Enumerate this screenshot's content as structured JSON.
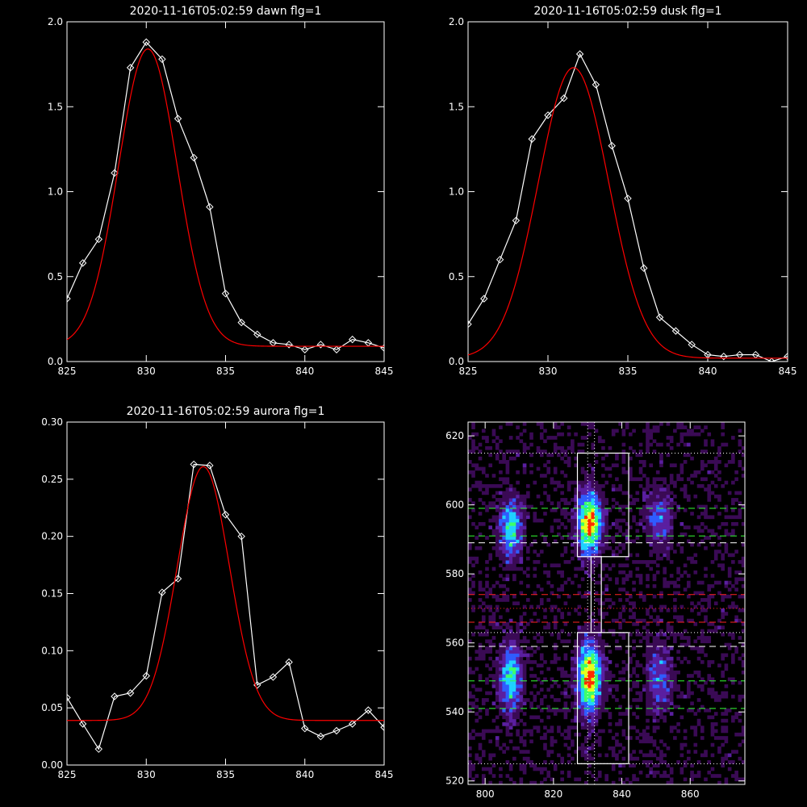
{
  "chart_data": [
    {
      "type": "line",
      "title": "2020-11-16T05:02:59 dawn flg=1",
      "xlim": [
        825,
        845
      ],
      "ylim": [
        0.0,
        2.0
      ],
      "xticks": [
        825,
        830,
        835,
        840,
        845
      ],
      "xtick_labels": [
        "825",
        "830",
        "835",
        "840",
        "845"
      ],
      "yticks": [
        0.0,
        0.5,
        1.0,
        1.5,
        2.0
      ],
      "ytick_labels": [
        "0.0",
        "0.5",
        "1.0",
        "1.5",
        "2.0"
      ],
      "series": [
        {
          "style": "data",
          "color": "#ffffff",
          "marker": "diamond",
          "x": [
            825,
            826,
            827,
            828,
            829,
            830,
            831,
            832,
            833,
            834,
            835,
            836,
            837,
            838,
            839,
            840,
            841,
            842,
            843,
            844,
            845
          ],
          "y": [
            0.37,
            0.58,
            0.72,
            1.11,
            1.73,
            1.88,
            1.78,
            1.43,
            1.2,
            0.91,
            0.4,
            0.23,
            0.16,
            0.11,
            0.1,
            0.07,
            0.1,
            0.07,
            0.13,
            0.11,
            0.08
          ]
        },
        {
          "style": "fit",
          "color": "#ff0000",
          "gaussian": {
            "amplitude": 1.75,
            "center": 830.1,
            "sigma": 1.85,
            "baseline": 0.09
          }
        }
      ]
    },
    {
      "type": "line",
      "title": "2020-11-16T05:02:59 dusk flg=1",
      "xlim": [
        825,
        845
      ],
      "ylim": [
        0.0,
        2.0
      ],
      "xticks": [
        825,
        830,
        835,
        840,
        845
      ],
      "xtick_labels": [
        "825",
        "830",
        "835",
        "840",
        "845"
      ],
      "yticks": [
        0.0,
        0.5,
        1.0,
        1.5,
        2.0
      ],
      "ytick_labels": [
        "0.0",
        "0.5",
        "1.0",
        "1.5",
        "2.0"
      ],
      "series": [
        {
          "style": "data",
          "color": "#ffffff",
          "marker": "diamond",
          "x": [
            825,
            826,
            827,
            828,
            829,
            830,
            831,
            832,
            833,
            834,
            835,
            836,
            837,
            838,
            839,
            840,
            841,
            842,
            843,
            844,
            845
          ],
          "y": [
            0.22,
            0.37,
            0.6,
            0.83,
            1.31,
            1.45,
            1.55,
            1.81,
            1.63,
            1.27,
            0.96,
            0.55,
            0.26,
            0.18,
            0.1,
            0.04,
            0.03,
            0.04,
            0.04,
            0.0,
            0.03
          ]
        },
        {
          "style": "fit",
          "color": "#ff0000",
          "gaussian": {
            "amplitude": 1.71,
            "center": 831.6,
            "sigma": 2.2,
            "baseline": 0.02
          }
        }
      ]
    },
    {
      "type": "line",
      "title": "2020-11-16T05:02:59 aurora flg=1",
      "xlim": [
        825,
        845
      ],
      "ylim": [
        0.0,
        0.3
      ],
      "xticks": [
        825,
        830,
        835,
        840,
        845
      ],
      "xtick_labels": [
        "825",
        "830",
        "835",
        "840",
        "845"
      ],
      "yticks": [
        0.0,
        0.05,
        0.1,
        0.15,
        0.2,
        0.25,
        0.3
      ],
      "ytick_labels": [
        "0.00",
        "0.05",
        "0.10",
        "0.15",
        "0.20",
        "0.25",
        "0.30"
      ],
      "series": [
        {
          "style": "data",
          "color": "#ffffff",
          "marker": "diamond",
          "x": [
            825,
            826,
            827,
            828,
            829,
            830,
            831,
            832,
            833,
            834,
            835,
            836,
            837,
            838,
            839,
            840,
            841,
            842,
            843,
            844,
            845
          ],
          "y": [
            0.059,
            0.036,
            0.014,
            0.06,
            0.063,
            0.078,
            0.151,
            0.163,
            0.263,
            0.262,
            0.219,
            0.2,
            0.07,
            0.077,
            0.09,
            0.032,
            0.025,
            0.03,
            0.036,
            0.048,
            0.033
          ]
        },
        {
          "style": "fit",
          "color": "#ff0000",
          "gaussian": {
            "amplitude": 0.222,
            "center": 833.6,
            "sigma": 1.65,
            "baseline": 0.039
          }
        }
      ]
    },
    {
      "type": "heatmap",
      "title": "",
      "xlim": [
        795,
        876
      ],
      "ylim": [
        519,
        624
      ],
      "xticks": [
        800,
        820,
        840,
        860
      ],
      "xtick_labels": [
        "800",
        "820",
        "840",
        "860"
      ],
      "yticks": [
        520,
        540,
        560,
        580,
        600,
        620
      ],
      "ytick_labels": [
        "520",
        "540",
        "560",
        "580",
        "600",
        "620"
      ],
      "colormap": [
        "#000000",
        "#3a0a55",
        "#5a1fa0",
        "#2f5cff",
        "#1fd2ff",
        "#3dff6a",
        "#e6ff1a",
        "#ff2a00"
      ],
      "emission_blobs": [
        {
          "x": 807.5,
          "y": 593,
          "sx": 2.2,
          "sy": 6,
          "peak": 0.6
        },
        {
          "x": 807.5,
          "y": 550,
          "sx": 2.2,
          "sy": 7,
          "peak": 0.6
        },
        {
          "x": 830.5,
          "y": 595,
          "sx": 2.4,
          "sy": 6,
          "peak": 0.95
        },
        {
          "x": 830.5,
          "y": 550,
          "sx": 2.4,
          "sy": 7,
          "peak": 0.95
        },
        {
          "x": 851,
          "y": 596,
          "sx": 2.6,
          "sy": 6,
          "peak": 0.35
        },
        {
          "x": 851,
          "y": 550,
          "sx": 2.6,
          "sy": 7,
          "peak": 0.35
        }
      ],
      "boxes": [
        {
          "x0": 827,
          "x1": 842,
          "y0": 585,
          "y1": 615,
          "color": "#ffffff"
        },
        {
          "x0": 827,
          "x1": 842,
          "y0": 525,
          "y1": 563,
          "color": "#ffffff"
        },
        {
          "x0": 831,
          "x1": 834,
          "y0": 563,
          "y1": 585,
          "color": "#ffffff"
        }
      ],
      "hlines": [
        {
          "y": 615,
          "color": "#ffffff",
          "dash": "dotted"
        },
        {
          "y": 599,
          "color": "#33ff33",
          "dash": "dashed"
        },
        {
          "y": 591,
          "color": "#33ff33",
          "dash": "dashed"
        },
        {
          "y": 589,
          "color": "#ffffff",
          "dash": "dashed"
        },
        {
          "y": 574,
          "color": "#ff2222",
          "dash": "dashed"
        },
        {
          "y": 570,
          "color": "#ff2222",
          "dash": "dotted"
        },
        {
          "y": 566,
          "color": "#ff2222",
          "dash": "dashed"
        },
        {
          "y": 563,
          "color": "#ffffff",
          "dash": "dotted"
        },
        {
          "y": 559,
          "color": "#ffffff",
          "dash": "dashed"
        },
        {
          "y": 549,
          "color": "#33ff33",
          "dash": "dashed"
        },
        {
          "y": 541,
          "color": "#33ff33",
          "dash": "dashed"
        },
        {
          "y": 525,
          "color": "#ffffff",
          "dash": "dotted"
        }
      ],
      "vlines": [
        {
          "x": 830,
          "color": "#ffffff",
          "dash": "dotted"
        },
        {
          "x": 832,
          "color": "#ffffff",
          "dash": "dotted"
        }
      ]
    }
  ]
}
